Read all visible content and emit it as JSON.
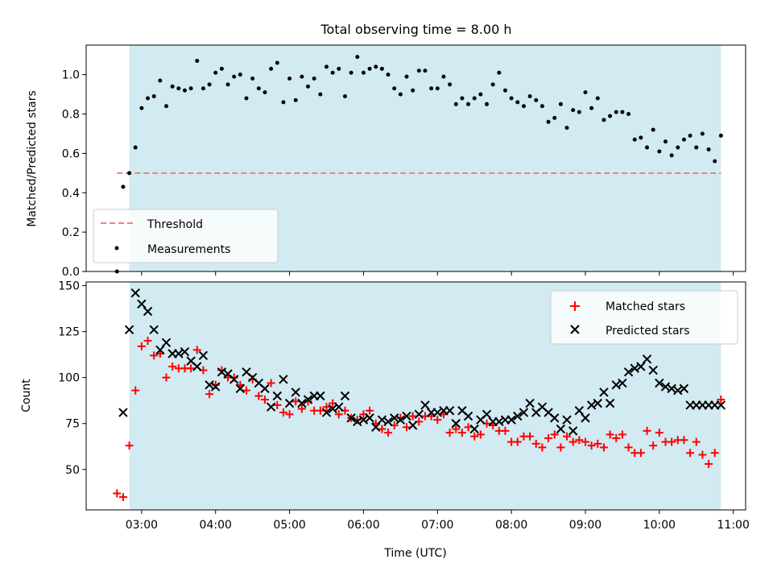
{
  "figure": {
    "title": "Total observing time = 8.00 h"
  },
  "chart_data": [
    {
      "type": "scatter",
      "title": "Total observing time = 8.00 h",
      "xlabel": "",
      "ylabel": "Matched/Predicted stars",
      "xlim": [
        "02:15",
        "11:10"
      ],
      "ylim": [
        0,
        1.15
      ],
      "yticks": [
        0.0,
        0.2,
        0.4,
        0.6,
        0.8,
        1.0
      ],
      "xticks": [
        "03:00",
        "04:00",
        "05:00",
        "06:00",
        "07:00",
        "08:00",
        "09:00",
        "10:00",
        "11:00"
      ],
      "shaded_region": {
        "start": "02:50",
        "end": "10:50",
        "color": "#add8e6"
      },
      "legend": {
        "placement": "lower-left",
        "entries": [
          "Threshold",
          "Measurements"
        ]
      },
      "threshold": {
        "name": "Threshold",
        "value": 0.5,
        "x_range": [
          "02:40",
          "10:50"
        ],
        "color": "#f08080",
        "style": "dashed"
      },
      "series": [
        {
          "name": "Measurements",
          "color": "#000000",
          "marker": "dot",
          "x": [
            "02:40",
            "02:45",
            "02:50",
            "02:55",
            "03:00",
            "03:05",
            "03:10",
            "03:15",
            "03:20",
            "03:25",
            "03:30",
            "03:35",
            "03:40",
            "03:45",
            "03:50",
            "03:55",
            "04:00",
            "04:05",
            "04:10",
            "04:15",
            "04:20",
            "04:25",
            "04:30",
            "04:35",
            "04:40",
            "04:45",
            "04:50",
            "04:55",
            "05:00",
            "05:05",
            "05:10",
            "05:15",
            "05:20",
            "05:25",
            "05:30",
            "05:35",
            "05:40",
            "05:45",
            "05:50",
            "05:55",
            "06:00",
            "06:05",
            "06:10",
            "06:15",
            "06:20",
            "06:25",
            "06:30",
            "06:35",
            "06:40",
            "06:45",
            "06:50",
            "06:55",
            "07:00",
            "07:05",
            "07:10",
            "07:15",
            "07:20",
            "07:25",
            "07:30",
            "07:35",
            "07:40",
            "07:45",
            "07:50",
            "07:55",
            "08:00",
            "08:05",
            "08:10",
            "08:15",
            "08:20",
            "08:25",
            "08:30",
            "08:35",
            "08:40",
            "08:45",
            "08:50",
            "08:55",
            "09:00",
            "09:05",
            "09:10",
            "09:15",
            "09:20",
            "09:25",
            "09:30",
            "09:35",
            "09:40",
            "09:45",
            "09:50",
            "09:55",
            "10:00",
            "10:05",
            "10:10",
            "10:15",
            "10:20",
            "10:25",
            "10:30",
            "10:35",
            "10:40",
            "10:45",
            "10:50"
          ],
          "y": [
            0.0,
            0.43,
            0.5,
            0.63,
            0.83,
            0.88,
            0.89,
            0.97,
            0.84,
            0.94,
            0.93,
            0.92,
            0.93,
            1.07,
            0.93,
            0.95,
            1.01,
            1.03,
            0.95,
            0.99,
            1.0,
            0.88,
            0.98,
            0.93,
            0.91,
            1.03,
            1.06,
            0.86,
            0.98,
            0.87,
            0.99,
            0.94,
            0.98,
            0.9,
            1.04,
            1.01,
            1.03,
            0.89,
            1.01,
            1.09,
            1.01,
            1.03,
            1.04,
            1.03,
            1.0,
            0.93,
            0.9,
            0.99,
            0.92,
            1.02,
            1.02,
            0.93,
            0.93,
            0.99,
            0.95,
            0.85,
            0.88,
            0.85,
            0.88,
            0.9,
            0.85,
            0.95,
            1.01,
            0.92,
            0.88,
            0.86,
            0.84,
            0.89,
            0.87,
            0.84,
            0.76,
            0.78,
            0.85,
            0.73,
            0.82,
            0.81,
            0.91,
            0.83,
            0.88,
            0.77,
            0.79,
            0.81,
            0.81,
            0.8,
            0.67,
            0.68,
            0.63,
            0.72,
            0.61,
            0.66,
            0.59,
            0.63,
            0.67,
            0.69,
            0.63,
            0.7,
            0.62,
            0.56,
            0.69
          ]
        }
      ]
    },
    {
      "type": "scatter",
      "title": "",
      "xlabel": "Time (UTC)",
      "ylabel": "Count",
      "xlim": [
        "02:15",
        "11:10"
      ],
      "ylim": [
        28,
        152
      ],
      "yticks": [
        50,
        75,
        100,
        125,
        150
      ],
      "xticks": [
        "03:00",
        "04:00",
        "05:00",
        "06:00",
        "07:00",
        "08:00",
        "09:00",
        "10:00",
        "11:00"
      ],
      "shaded_region": {
        "start": "02:50",
        "end": "10:50",
        "color": "#add8e6"
      },
      "legend": {
        "placement": "top-right",
        "entries": [
          "Matched stars",
          "Predicted stars"
        ]
      },
      "series": [
        {
          "name": "Matched stars",
          "color": "#ff0000",
          "marker": "plus",
          "x": [
            "02:40",
            "02:45",
            "02:50",
            "02:55",
            "03:00",
            "03:05",
            "03:10",
            "03:15",
            "03:20",
            "03:25",
            "03:30",
            "03:35",
            "03:40",
            "03:45",
            "03:50",
            "03:55",
            "04:00",
            "04:05",
            "04:10",
            "04:15",
            "04:20",
            "04:25",
            "04:30",
            "04:35",
            "04:40",
            "04:45",
            "04:50",
            "04:55",
            "05:00",
            "05:05",
            "05:10",
            "05:15",
            "05:20",
            "05:25",
            "05:30",
            "05:35",
            "05:40",
            "05:45",
            "05:50",
            "05:55",
            "06:00",
            "06:05",
            "06:10",
            "06:15",
            "06:20",
            "06:25",
            "06:30",
            "06:35",
            "06:40",
            "06:45",
            "06:50",
            "06:55",
            "07:00",
            "07:05",
            "07:10",
            "07:15",
            "07:20",
            "07:25",
            "07:30",
            "07:35",
            "07:40",
            "07:45",
            "07:50",
            "07:55",
            "08:00",
            "08:05",
            "08:10",
            "08:15",
            "08:20",
            "08:25",
            "08:30",
            "08:35",
            "08:40",
            "08:45",
            "08:50",
            "08:55",
            "09:00",
            "09:05",
            "09:10",
            "09:15",
            "09:20",
            "09:25",
            "09:30",
            "09:35",
            "09:40",
            "09:45",
            "09:50",
            "09:55",
            "10:00",
            "10:05",
            "10:10",
            "10:15",
            "10:20",
            "10:25",
            "10:30",
            "10:35",
            "10:40",
            "10:45",
            "10:50"
          ],
          "y": [
            37,
            35,
            63,
            93,
            117,
            120,
            112,
            113,
            100,
            106,
            105,
            105,
            105,
            115,
            104,
            91,
            96,
            104,
            100,
            100,
            96,
            93,
            99,
            90,
            88,
            97,
            85,
            81,
            80,
            87,
            83,
            87,
            82,
            82,
            84,
            86,
            80,
            82,
            78,
            77,
            80,
            82,
            75,
            72,
            70,
            74,
            78,
            73,
            79,
            76,
            79,
            79,
            77,
            80,
            70,
            72,
            70,
            73,
            68,
            69,
            75,
            74,
            71,
            71,
            65,
            65,
            68,
            68,
            64,
            62,
            67,
            69,
            62,
            68,
            65,
            66,
            65,
            63,
            64,
            62,
            69,
            67,
            69,
            62,
            59,
            59,
            71,
            63,
            70,
            65,
            65,
            66,
            66,
            59,
            65,
            58,
            53,
            59,
            88
          ]
        },
        {
          "name": "Predicted stars",
          "color": "#000000",
          "marker": "x",
          "x": [
            "02:45",
            "02:50",
            "02:55",
            "03:00",
            "03:05",
            "03:10",
            "03:15",
            "03:20",
            "03:25",
            "03:30",
            "03:35",
            "03:40",
            "03:45",
            "03:50",
            "03:55",
            "04:00",
            "04:05",
            "04:10",
            "04:15",
            "04:20",
            "04:25",
            "04:30",
            "04:35",
            "04:40",
            "04:45",
            "04:50",
            "04:55",
            "05:00",
            "05:05",
            "05:10",
            "05:15",
            "05:20",
            "05:25",
            "05:30",
            "05:35",
            "05:40",
            "05:45",
            "05:50",
            "05:55",
            "06:00",
            "06:05",
            "06:10",
            "06:15",
            "06:20",
            "06:25",
            "06:30",
            "06:35",
            "06:40",
            "06:45",
            "06:50",
            "06:55",
            "07:00",
            "07:05",
            "07:10",
            "07:15",
            "07:20",
            "07:25",
            "07:30",
            "07:35",
            "07:40",
            "07:45",
            "07:50",
            "07:55",
            "08:00",
            "08:05",
            "08:10",
            "08:15",
            "08:20",
            "08:25",
            "08:30",
            "08:35",
            "08:40",
            "08:45",
            "08:50",
            "08:55",
            "09:00",
            "09:05",
            "09:10",
            "09:15",
            "09:20",
            "09:25",
            "09:30",
            "09:35",
            "09:40",
            "09:45",
            "09:50",
            "09:55",
            "10:00",
            "10:05",
            "10:10",
            "10:15",
            "10:20",
            "10:25",
            "10:30",
            "10:35",
            "10:40",
            "10:45",
            "10:50"
          ],
          "y": [
            81,
            126,
            146,
            140,
            136,
            126,
            115,
            119,
            113,
            113,
            114,
            109,
            106,
            112,
            96,
            95,
            103,
            102,
            99,
            94,
            103,
            100,
            97,
            94,
            84,
            90,
            99,
            86,
            92,
            86,
            88,
            90,
            90,
            81,
            83,
            84,
            90,
            78,
            76,
            77,
            78,
            73,
            77,
            76,
            78,
            77,
            79,
            74,
            80,
            85,
            81,
            81,
            82,
            82,
            75,
            82,
            79,
            72,
            77,
            80,
            76,
            76,
            77,
            77,
            79,
            81,
            86,
            81,
            84,
            81,
            78,
            72,
            77,
            71,
            82,
            78,
            85,
            86,
            92,
            86,
            96,
            97,
            103,
            105,
            106,
            110,
            104,
            97,
            95,
            94,
            93,
            94,
            85,
            85,
            85,
            85,
            85,
            85
          ]
        }
      ]
    }
  ]
}
